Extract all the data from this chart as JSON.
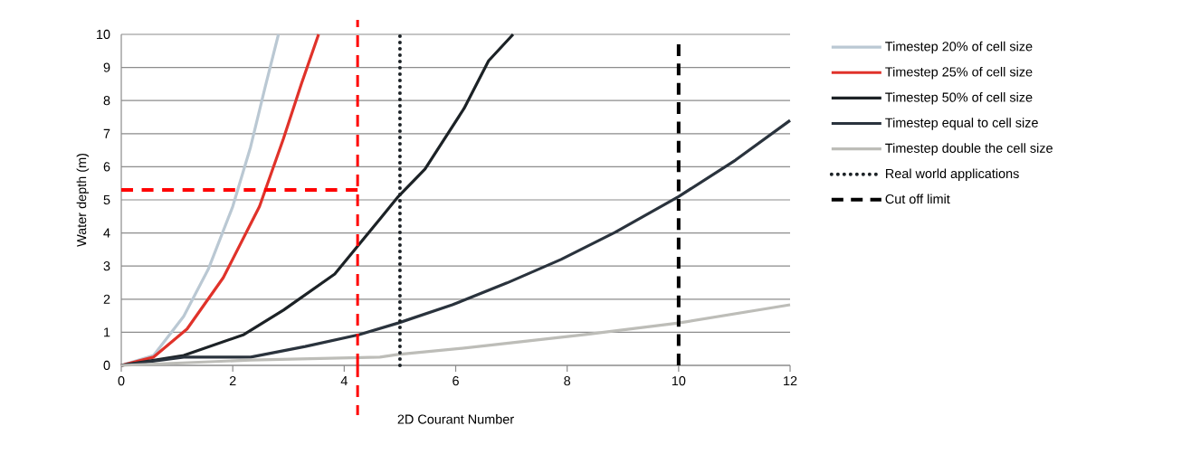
{
  "chart_data": {
    "type": "line",
    "xlabel": "2D Courant Number",
    "ylabel": "Water depth (m)",
    "xlim": [
      0,
      12
    ],
    "ylim": [
      0,
      10
    ],
    "xticks": [
      0,
      2,
      4,
      6,
      8,
      10,
      12
    ],
    "yticks": [
      0,
      1,
      2,
      3,
      4,
      5,
      6,
      7,
      8,
      9,
      10
    ],
    "grid": "y",
    "legend": "right",
    "series": [
      {
        "name": "Timestep 20% of cell size",
        "color": "#bac8d3",
        "x": [
          0,
          0.58,
          1.12,
          1.56,
          2.0,
          2.32,
          2.58,
          2.82
        ],
        "values": [
          0,
          0.3,
          1.48,
          2.9,
          4.8,
          6.6,
          8.4,
          10
        ]
      },
      {
        "name": "Timestep 25% of cell size",
        "color": "#e0322a",
        "x": [
          0,
          0.58,
          1.18,
          1.83,
          2.48,
          2.91,
          3.23,
          3.54
        ],
        "values": [
          0,
          0.25,
          1.1,
          2.65,
          4.8,
          6.85,
          8.5,
          10
        ]
      },
      {
        "name": "Timestep 50% of cell size",
        "color": "#1c2226",
        "x": [
          0,
          1.12,
          2.2,
          2.91,
          3.83,
          4.64,
          4.97,
          5.45,
          6.15,
          6.59,
          7.03
        ],
        "values": [
          0,
          0.3,
          0.93,
          1.67,
          2.76,
          4.42,
          5.1,
          5.93,
          7.76,
          9.2,
          10
        ]
      },
      {
        "name": "Timestep equal to cell size",
        "color": "#2a333d",
        "x": [
          0,
          1.12,
          2.32,
          3.3,
          4.27,
          4.97,
          5.94,
          6.92,
          7.89,
          8.86,
          10.0,
          11.02,
          12
        ],
        "values": [
          0,
          0.25,
          0.25,
          0.57,
          0.93,
          1.28,
          1.83,
          2.49,
          3.2,
          4.02,
          5.1,
          6.2,
          7.4
        ]
      },
      {
        "name": "Timestep double the cell size",
        "color": "#bdbdb8",
        "x": [
          0,
          2.32,
          4.64,
          4.97,
          6.15,
          8.33,
          10.0,
          12
        ],
        "values": [
          0,
          0.16,
          0.25,
          0.33,
          0.52,
          0.93,
          1.28,
          1.83
        ]
      },
      {
        "name": "Real world applications",
        "color": "#1c2226",
        "line_style": "dotted",
        "x": [
          5,
          5
        ],
        "values": [
          0,
          10
        ]
      },
      {
        "name": "Cut off limit",
        "color": "#000000",
        "line_style": "dashed",
        "x": [
          10,
          10
        ],
        "values": [
          0,
          9.7
        ]
      },
      {
        "color": "#ff0000",
        "line_style": "dashed",
        "x": [
          0,
          4.24
        ],
        "values": [
          5.3,
          5.3
        ]
      }
    ],
    "ref_lines": [
      {
        "axis": "x",
        "value": 4.24,
        "color": "#ff0000",
        "line_style": "dashed"
      }
    ]
  }
}
